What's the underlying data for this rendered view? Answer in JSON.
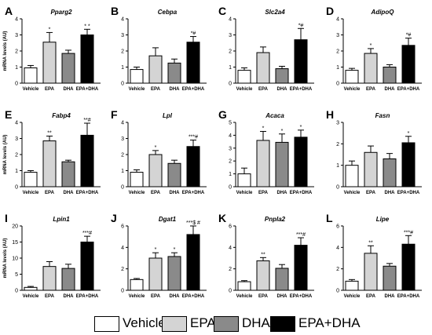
{
  "ylabel_shared": "mRNA levels (AU)",
  "legend": [
    {
      "label": "Vehicle",
      "color": "#ffffff"
    },
    {
      "label": "EPA",
      "color": "#d4d4d4"
    },
    {
      "label": "DHA",
      "color": "#8a8a8a"
    },
    {
      "label": "EPA+DHA",
      "color": "#000000"
    }
  ],
  "chart_data": [
    {
      "type": "bar",
      "letter": "A",
      "title": "Pparg2",
      "categories": [
        "Vehicle",
        "EPA",
        "DHA",
        "EPA+DHA"
      ],
      "values": [
        0.95,
        2.55,
        1.85,
        3.0
      ],
      "errors": [
        0.15,
        0.6,
        0.2,
        0.35
      ],
      "annotations": [
        "",
        "*",
        "",
        "* *"
      ],
      "ylim": [
        0,
        4
      ],
      "yticks": [
        0,
        1,
        2,
        3,
        4
      ],
      "ylabel": "mRNA levels (AU)"
    },
    {
      "type": "bar",
      "letter": "B",
      "title": "Cebpa",
      "categories": [
        "Vehicle",
        "EPA",
        "DHA",
        "EPA+DHA"
      ],
      "values": [
        0.85,
        1.7,
        1.25,
        2.55
      ],
      "errors": [
        0.15,
        0.5,
        0.25,
        0.35
      ],
      "annotations": [
        "",
        "",
        "",
        "*#"
      ],
      "ylim": [
        0,
        4
      ],
      "yticks": [
        0,
        1,
        2,
        3,
        4
      ],
      "ylabel": ""
    },
    {
      "type": "bar",
      "letter": "C",
      "title": "Slc2a4",
      "categories": [
        "Vehicle",
        "EPA",
        "DHA",
        "EPA+DHA"
      ],
      "values": [
        0.8,
        1.9,
        0.9,
        2.7
      ],
      "errors": [
        0.15,
        0.35,
        0.15,
        0.7
      ],
      "annotations": [
        "",
        "",
        "",
        "*#"
      ],
      "ylim": [
        0,
        4
      ],
      "yticks": [
        0,
        1,
        2,
        3,
        4
      ],
      "ylabel": ""
    },
    {
      "type": "bar",
      "letter": "D",
      "title": "AdipoQ",
      "categories": [
        "Vehicle",
        "EPA",
        "DHA",
        "EPA+DHA"
      ],
      "values": [
        0.8,
        1.85,
        1.0,
        2.35
      ],
      "errors": [
        0.12,
        0.3,
        0.15,
        0.45
      ],
      "annotations": [
        "",
        "*",
        "",
        "*#"
      ],
      "ylim": [
        0,
        4
      ],
      "yticks": [
        0,
        1,
        2,
        3,
        4
      ],
      "ylabel": ""
    },
    {
      "type": "bar",
      "letter": "E",
      "title": "Fabp4",
      "categories": [
        "Vehicle",
        "EPA",
        "DHA",
        "EPA+DHA"
      ],
      "values": [
        0.9,
        2.85,
        1.55,
        3.2
      ],
      "errors": [
        0.1,
        0.3,
        0.1,
        0.75
      ],
      "annotations": [
        "",
        "**",
        "",
        "**#"
      ],
      "ylim": [
        0,
        4
      ],
      "yticks": [
        0,
        1,
        2,
        3,
        4
      ],
      "ylabel": "mRNA levels (AU)"
    },
    {
      "type": "bar",
      "letter": "F",
      "title": "Lpl",
      "categories": [
        "Vehicle",
        "EPA",
        "DHA",
        "EPA+DHA"
      ],
      "values": [
        0.9,
        2.0,
        1.45,
        2.5
      ],
      "errors": [
        0.15,
        0.25,
        0.2,
        0.4
      ],
      "annotations": [
        "",
        "*",
        "",
        "***#"
      ],
      "ylim": [
        0,
        4
      ],
      "yticks": [
        0,
        1,
        2,
        3,
        4
      ],
      "ylabel": ""
    },
    {
      "type": "bar",
      "letter": "G",
      "title": "Acaca",
      "categories": [
        "Vehicle",
        "EPA",
        "DHA",
        "EPA+DHA"
      ],
      "values": [
        1.0,
        3.6,
        3.45,
        3.85
      ],
      "errors": [
        0.45,
        0.7,
        0.65,
        0.55
      ],
      "annotations": [
        "",
        "*",
        "*",
        "*"
      ],
      "ylim": [
        0,
        5
      ],
      "yticks": [
        0,
        1,
        2,
        3,
        4,
        5
      ],
      "ylabel": ""
    },
    {
      "type": "bar",
      "letter": "H",
      "title": "Fasn",
      "categories": [
        "Vehicle",
        "EPA",
        "DHA",
        "EPA+DHA"
      ],
      "values": [
        1.0,
        1.6,
        1.3,
        2.05
      ],
      "errors": [
        0.2,
        0.3,
        0.25,
        0.3
      ],
      "annotations": [
        "",
        "",
        "",
        "*"
      ],
      "ylim": [
        0,
        3
      ],
      "yticks": [
        0,
        1,
        2,
        3
      ],
      "ylabel": ""
    },
    {
      "type": "bar",
      "letter": "I",
      "title": "Lpin1",
      "categories": [
        "Vehicle",
        "EPA",
        "DHA",
        "EPA+DHA"
      ],
      "values": [
        0.9,
        7.4,
        6.8,
        15.0
      ],
      "errors": [
        0.3,
        1.5,
        1.3,
        1.8
      ],
      "annotations": [
        "",
        "",
        "",
        "***#"
      ],
      "ylim": [
        0,
        20
      ],
      "yticks": [
        0,
        5,
        10,
        15,
        20
      ],
      "ylabel": "mRNA levels (AU)"
    },
    {
      "type": "bar",
      "letter": "J",
      "title": "Dgat1",
      "categories": [
        "Vehicle",
        "EPA",
        "DHA",
        "EPA+DHA"
      ],
      "values": [
        1.0,
        3.0,
        3.15,
        5.2
      ],
      "errors": [
        0.1,
        0.5,
        0.35,
        0.8
      ],
      "annotations": [
        "",
        "*",
        "*",
        "***$ #"
      ],
      "ylim": [
        0,
        6
      ],
      "yticks": [
        0,
        2,
        4,
        6
      ],
      "ylabel": ""
    },
    {
      "type": "bar",
      "letter": "K",
      "title": "Pnpla2",
      "categories": [
        "Vehicle",
        "EPA",
        "DHA",
        "EPA+DHA"
      ],
      "values": [
        0.8,
        2.75,
        2.05,
        4.2
      ],
      "errors": [
        0.1,
        0.3,
        0.35,
        0.7
      ],
      "annotations": [
        "",
        "**",
        "",
        "***#"
      ],
      "ylim": [
        0,
        6
      ],
      "yticks": [
        0,
        2,
        4,
        6
      ],
      "ylabel": ""
    },
    {
      "type": "bar",
      "letter": "L",
      "title": "Lipe",
      "categories": [
        "Vehicle",
        "EPA",
        "DHA",
        "EPA+DHA"
      ],
      "values": [
        0.85,
        3.45,
        2.25,
        4.3
      ],
      "errors": [
        0.15,
        0.7,
        0.25,
        0.8
      ],
      "annotations": [
        "",
        "**",
        "",
        "***#"
      ],
      "ylim": [
        0,
        6
      ],
      "yticks": [
        0,
        2,
        4,
        6
      ],
      "ylabel": ""
    }
  ]
}
